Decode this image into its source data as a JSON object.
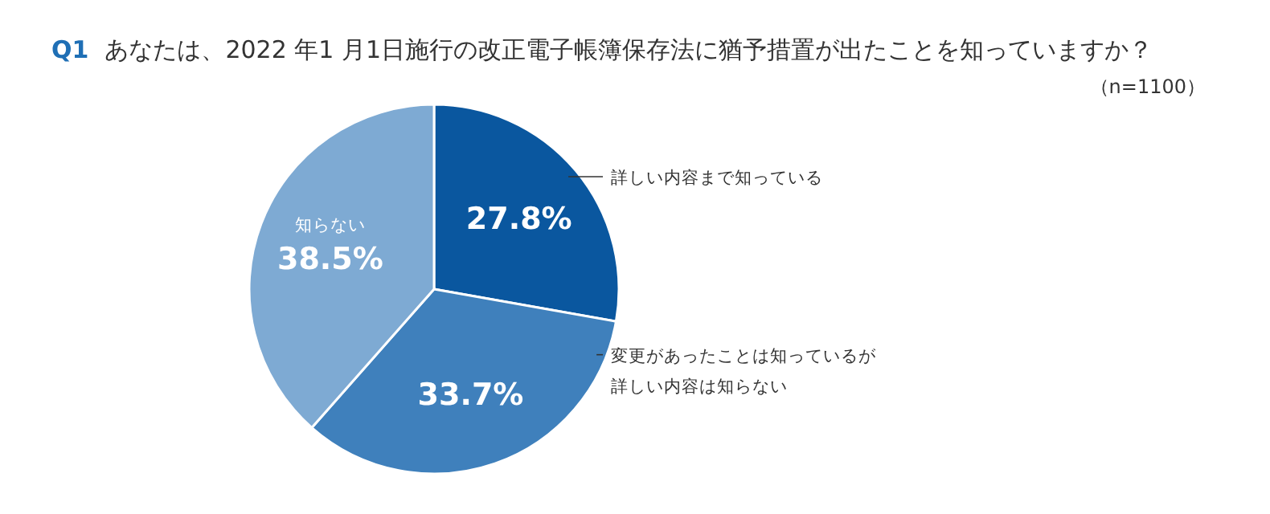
{
  "chart_data": {
    "type": "pie",
    "title": "Q1　あなたは、2022 年1 月1日施行の改正電子帳簿保存法に猶予措置が出たことを知っていますか？",
    "subtitle": "（n=1100）",
    "categories": [
      "詳しい内容まで知っている",
      "変更があったことは知っているが詳しい内容は知らない",
      "知らない"
    ],
    "values": [
      27.8,
      33.7,
      38.5
    ],
    "colors": [
      "#0a579f",
      "#3f80bc",
      "#7eaad3"
    ],
    "value_labels": [
      "27.8%",
      "33.7%",
      "38.5%"
    ]
  }
}
